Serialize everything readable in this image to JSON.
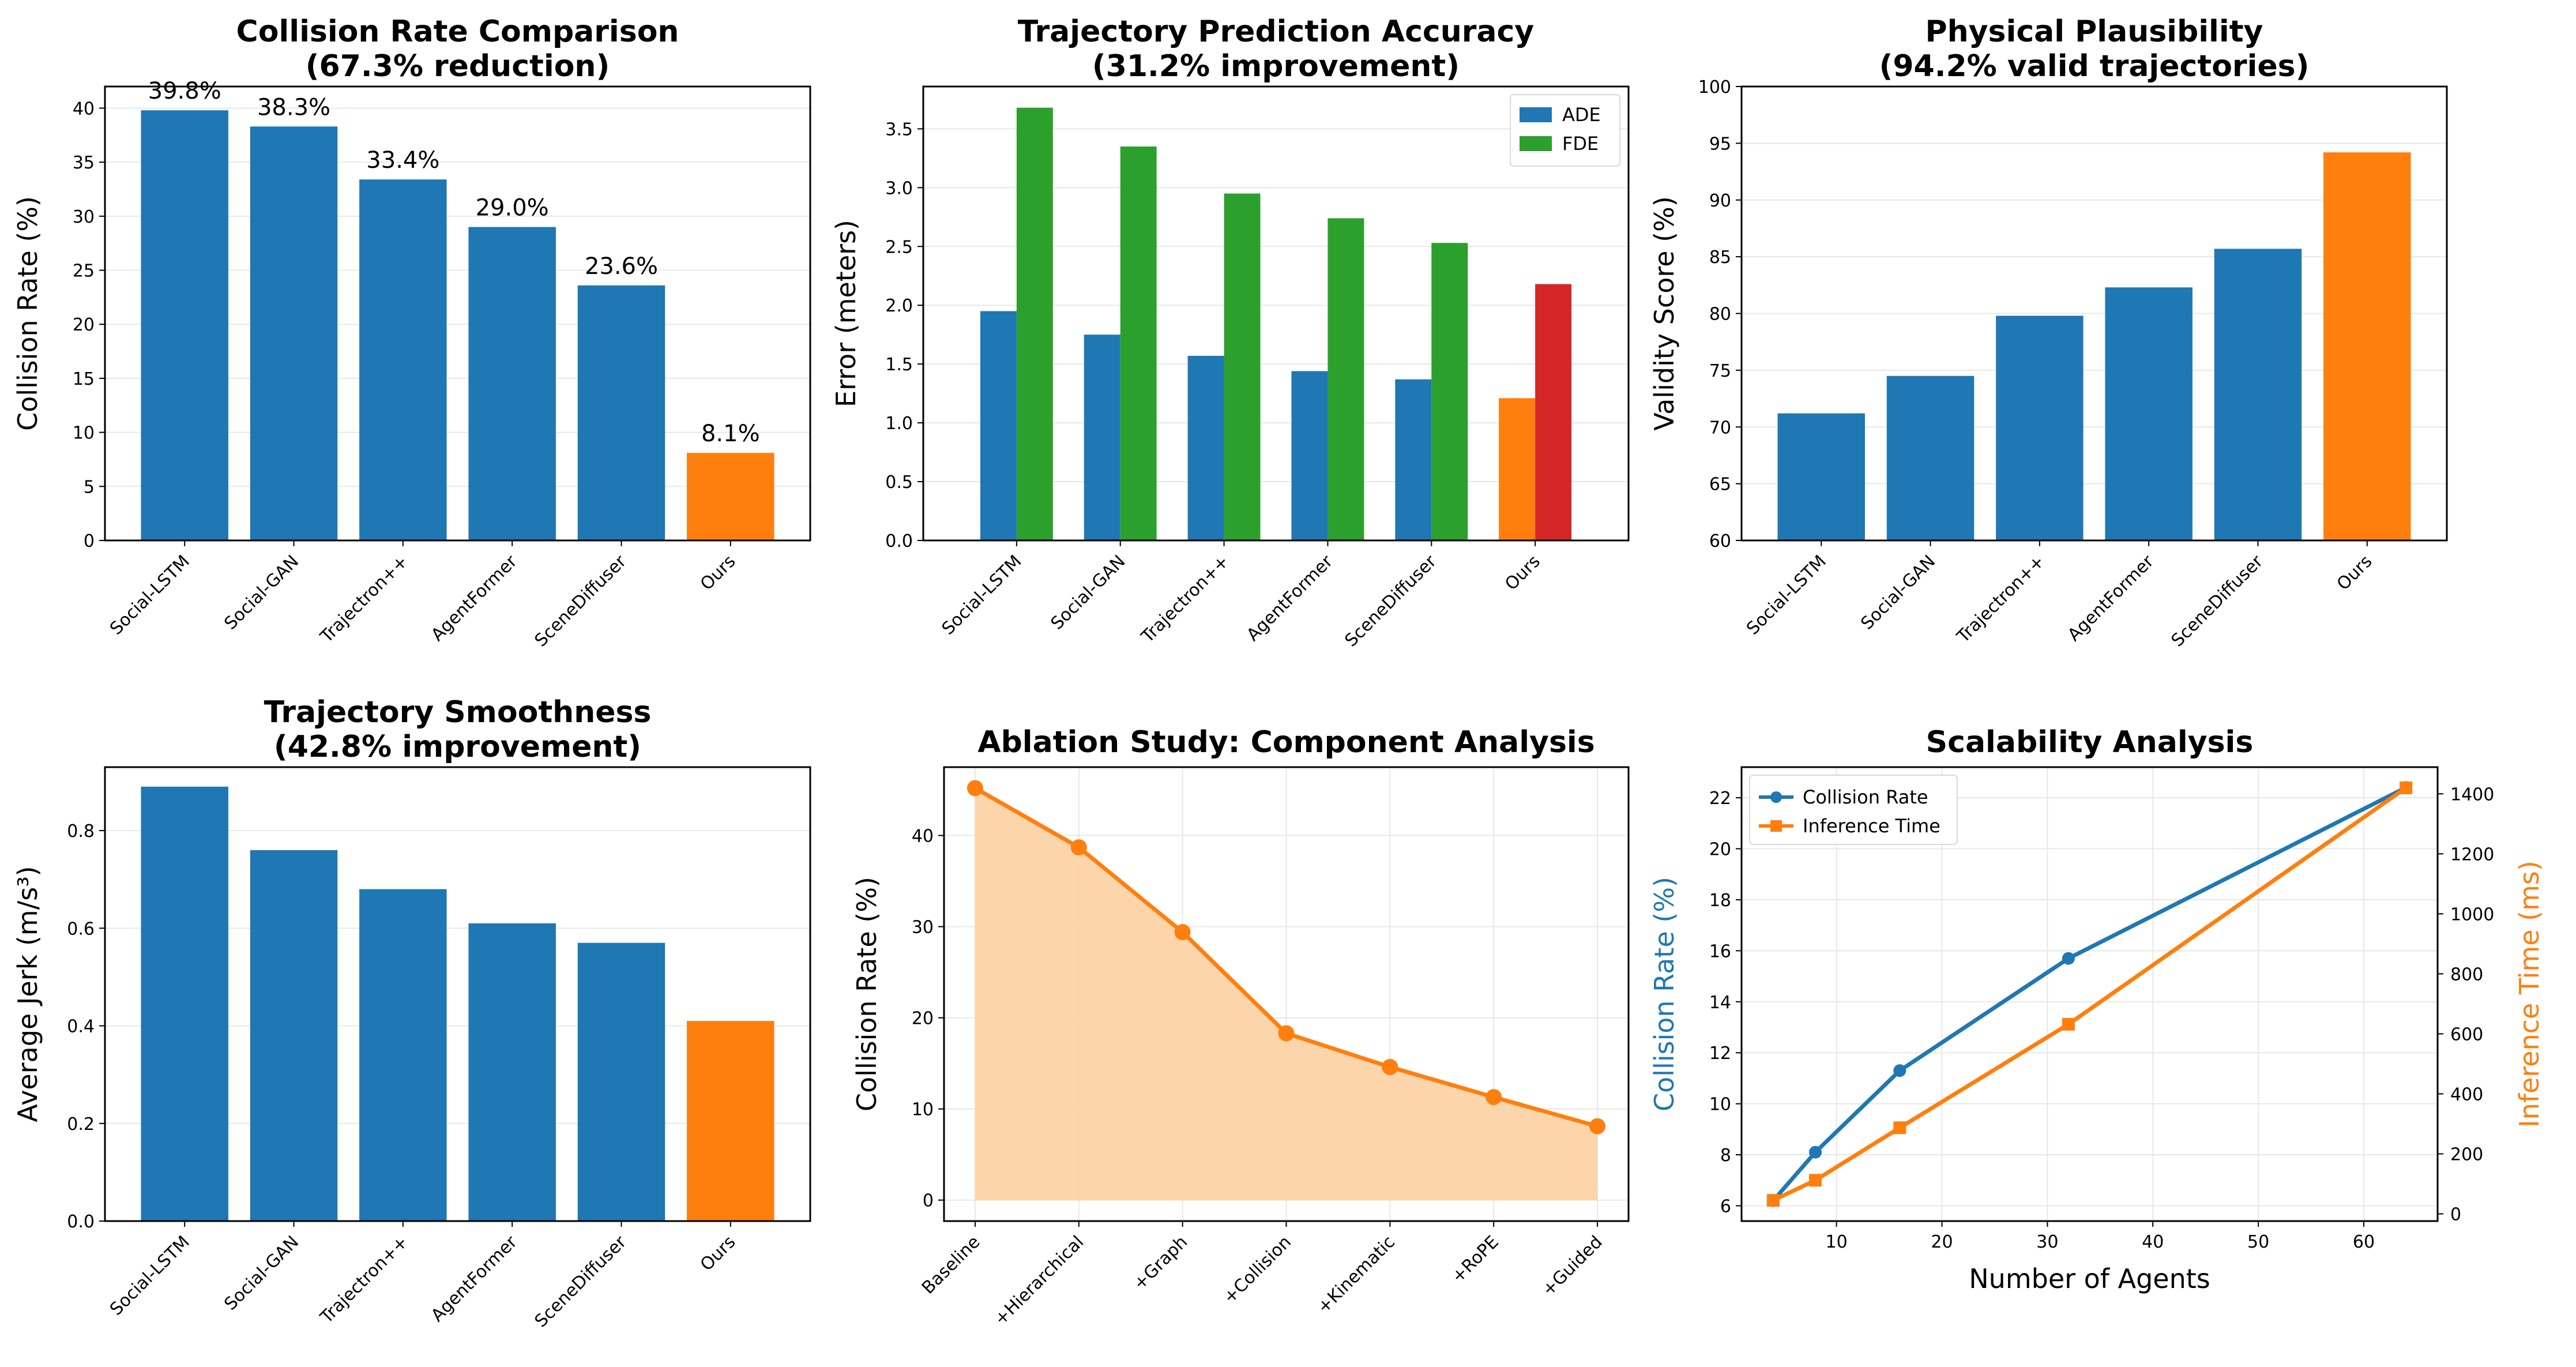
{
  "chart_data": [
    {
      "id": "collision",
      "type": "bar",
      "title": [
        "Collision Rate Comparison",
        "(67.3% reduction)"
      ],
      "xlabel": "",
      "ylabel": "Collision Rate (%)",
      "categories": [
        "Social-LSTM",
        "Social-GAN",
        "Trajectron++",
        "AgentFormer",
        "SceneDiffuser",
        "Ours"
      ],
      "values": [
        39.8,
        38.3,
        33.4,
        29.0,
        23.6,
        8.1
      ],
      "value_labels": [
        "39.8%",
        "38.3%",
        "33.4%",
        "29.0%",
        "23.6%",
        "8.1%"
      ],
      "colors": [
        "#1f77b4",
        "#1f77b4",
        "#1f77b4",
        "#1f77b4",
        "#1f77b4",
        "#ff7f0e"
      ],
      "ylim": [
        0,
        42
      ],
      "yticks": [
        0,
        5,
        10,
        15,
        20,
        25,
        30,
        35,
        40
      ],
      "grid": true
    },
    {
      "id": "accuracy",
      "type": "bar",
      "title": [
        "Trajectory Prediction Accuracy",
        "(31.2% improvement)"
      ],
      "xlabel": "",
      "ylabel": "Error (meters)",
      "categories": [
        "Social-LSTM",
        "Social-GAN",
        "Trajectron++",
        "AgentFormer",
        "SceneDiffuser",
        "Ours"
      ],
      "series": [
        {
          "name": "ADE",
          "values": [
            1.95,
            1.75,
            1.57,
            1.44,
            1.37,
            1.21
          ],
          "color": "#1f77b4",
          "ours_color": "#ff7f0e"
        },
        {
          "name": "FDE",
          "values": [
            3.68,
            3.35,
            2.95,
            2.74,
            2.53,
            2.18
          ],
          "color": "#2ca02c",
          "ours_color": "#d62728"
        }
      ],
      "ylim": [
        0,
        3.86
      ],
      "yticks": [
        0.0,
        0.5,
        1.0,
        1.5,
        2.0,
        2.5,
        3.0,
        3.5
      ],
      "ytick_labels": [
        "0.0",
        "0.5",
        "1.0",
        "1.5",
        "2.0",
        "2.5",
        "3.0",
        "3.5"
      ],
      "legend": "top-right",
      "grid": true
    },
    {
      "id": "plausibility",
      "type": "bar",
      "title": [
        "Physical Plausibility",
        "(94.2% valid trajectories)"
      ],
      "xlabel": "",
      "ylabel": "Validity Score (%)",
      "categories": [
        "Social-LSTM",
        "Social-GAN",
        "Trajectron++",
        "AgentFormer",
        "SceneDiffuser",
        "Ours"
      ],
      "values": [
        71.2,
        74.5,
        79.8,
        82.3,
        85.7,
        94.2
      ],
      "colors": [
        "#1f77b4",
        "#1f77b4",
        "#1f77b4",
        "#1f77b4",
        "#1f77b4",
        "#ff7f0e"
      ],
      "ylim": [
        60,
        100
      ],
      "yticks": [
        60,
        65,
        70,
        75,
        80,
        85,
        90,
        95,
        100
      ],
      "grid": true
    },
    {
      "id": "smoothness",
      "type": "bar",
      "title": [
        "Trajectory Smoothness",
        "(42.8% improvement)"
      ],
      "xlabel": "",
      "ylabel": "Average Jerk (m/s³)",
      "categories": [
        "Social-LSTM",
        "Social-GAN",
        "Trajectron++",
        "AgentFormer",
        "SceneDiffuser",
        "Ours"
      ],
      "values": [
        0.89,
        0.76,
        0.68,
        0.61,
        0.57,
        0.41
      ],
      "colors": [
        "#1f77b4",
        "#1f77b4",
        "#1f77b4",
        "#1f77b4",
        "#1f77b4",
        "#ff7f0e"
      ],
      "ylim": [
        0,
        0.93
      ],
      "yticks": [
        0.0,
        0.2,
        0.4,
        0.6,
        0.8
      ],
      "ytick_labels": [
        "0.0",
        "0.2",
        "0.4",
        "0.6",
        "0.8"
      ],
      "grid": true
    },
    {
      "id": "ablation",
      "type": "area",
      "title": [
        "Ablation Study: Component Analysis"
      ],
      "xlabel": "",
      "ylabel": "Collision Rate (%)",
      "categories": [
        "Baseline",
        "+Hierarchical",
        "+Graph",
        "+Collision",
        "+Kinematic",
        "+RoPE",
        "+Guided"
      ],
      "values": [
        45.2,
        38.7,
        29.4,
        18.3,
        14.6,
        11.3,
        8.1
      ],
      "line_color": "#ff7f0e",
      "fill_color": "#fdd0a2",
      "ylim": [
        -2.3,
        47.5
      ],
      "yticks": [
        0,
        10,
        20,
        30,
        40
      ],
      "grid": true
    },
    {
      "id": "scalability",
      "type": "line",
      "title": [
        "Scalability Analysis"
      ],
      "xlabel": "Number of Agents",
      "ylabel": "Collision Rate (%)",
      "ylabel_right": "Inference Time (ms)",
      "x": [
        4,
        8,
        16,
        32,
        64
      ],
      "series": [
        {
          "name": "Collision Rate",
          "axis": "left",
          "values": [
            6.2,
            8.1,
            11.3,
            15.7,
            22.4
          ],
          "color": "#1f77b4",
          "marker": "circle"
        },
        {
          "name": "Inference Time",
          "axis": "right",
          "values": [
            45,
            112,
            287,
            632,
            1420
          ],
          "color": "#ff7f0e",
          "marker": "square"
        }
      ],
      "xlim": [
        1,
        67
      ],
      "xticks": [
        10,
        20,
        30,
        40,
        50,
        60
      ],
      "ylim": [
        5.4,
        23.2
      ],
      "yticks": [
        6,
        8,
        10,
        12,
        14,
        16,
        18,
        20,
        22
      ],
      "ylim_right": [
        -24,
        1489
      ],
      "yticks_right": [
        0,
        200,
        400,
        600,
        800,
        1000,
        1200,
        1400
      ],
      "legend": "top-left",
      "grid": true
    }
  ]
}
